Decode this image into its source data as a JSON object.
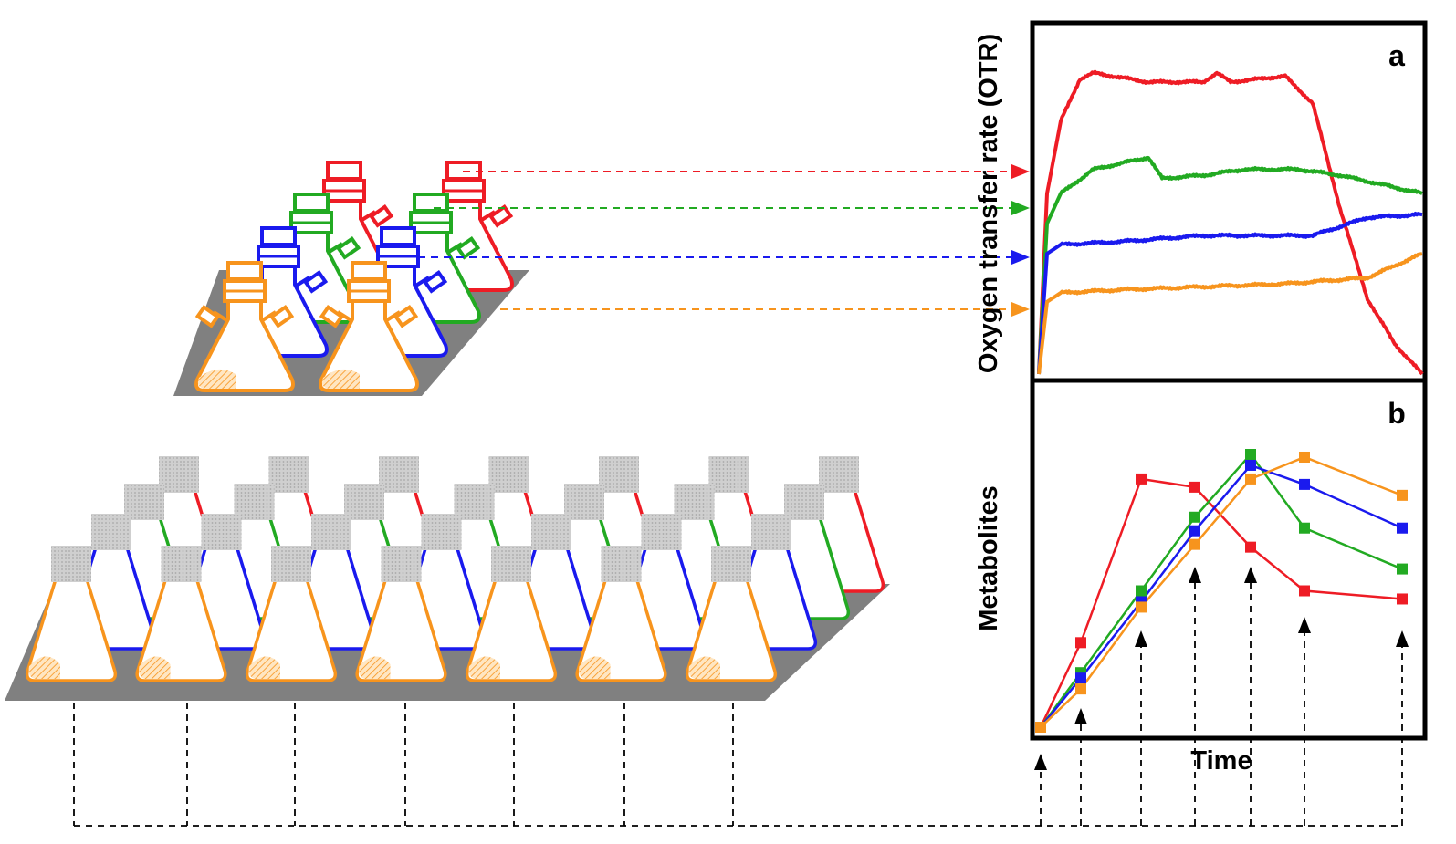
{
  "panel_a": {
    "label": "a",
    "ylabel": "Oxygen transfer rate (OTR)"
  },
  "panel_b": {
    "label": "b",
    "ylabel": "Metabolites",
    "xlabel": "Time"
  },
  "colors": {
    "red": "#ee1c25",
    "green": "#22aa22",
    "blue": "#1a1aee",
    "orange": "#f7941d",
    "platform": "#808080",
    "cap_gray": "#c8c8c8"
  },
  "chart_data": [
    {
      "type": "line",
      "panel": "a",
      "series": [
        {
          "color": "red",
          "x": [
            0,
            3,
            8,
            15,
            20,
            40,
            60,
            65,
            70,
            90,
            92,
            100,
            110,
            120,
            130,
            140
          ],
          "y": [
            0,
            60,
            84,
            98,
            100,
            97,
            97,
            100,
            97,
            99,
            97,
            90,
            55,
            25,
            10,
            0
          ]
        },
        {
          "color": "green",
          "x": [
            0,
            3,
            8,
            20,
            40,
            45,
            60,
            75,
            95,
            110,
            140
          ],
          "y": [
            0,
            50,
            60,
            68,
            72,
            65,
            66,
            68,
            68,
            66,
            60
          ]
        },
        {
          "color": "blue",
          "x": [
            0,
            3,
            8,
            30,
            60,
            100,
            120,
            140
          ],
          "y": [
            0,
            40,
            43,
            44,
            46,
            46,
            52,
            53
          ]
        },
        {
          "color": "orange",
          "x": [
            0,
            3,
            8,
            30,
            60,
            90,
            120,
            140
          ],
          "y": [
            0,
            24,
            27,
            28,
            29,
            30,
            32,
            40
          ]
        }
      ]
    },
    {
      "type": "line",
      "panel": "b",
      "x": [
        0,
        1,
        2,
        3,
        4,
        5,
        6
      ],
      "series": [
        {
          "color": "red",
          "values": [
            0,
            31,
            91,
            88,
            66,
            50,
            47
          ]
        },
        {
          "color": "green",
          "values": [
            0,
            20,
            50,
            77,
            100,
            73,
            58
          ]
        },
        {
          "color": "blue",
          "values": [
            0,
            18,
            46,
            72,
            96,
            89,
            73
          ]
        },
        {
          "color": "orange",
          "values": [
            0,
            14,
            44,
            67,
            91,
            99,
            85
          ]
        }
      ]
    }
  ]
}
